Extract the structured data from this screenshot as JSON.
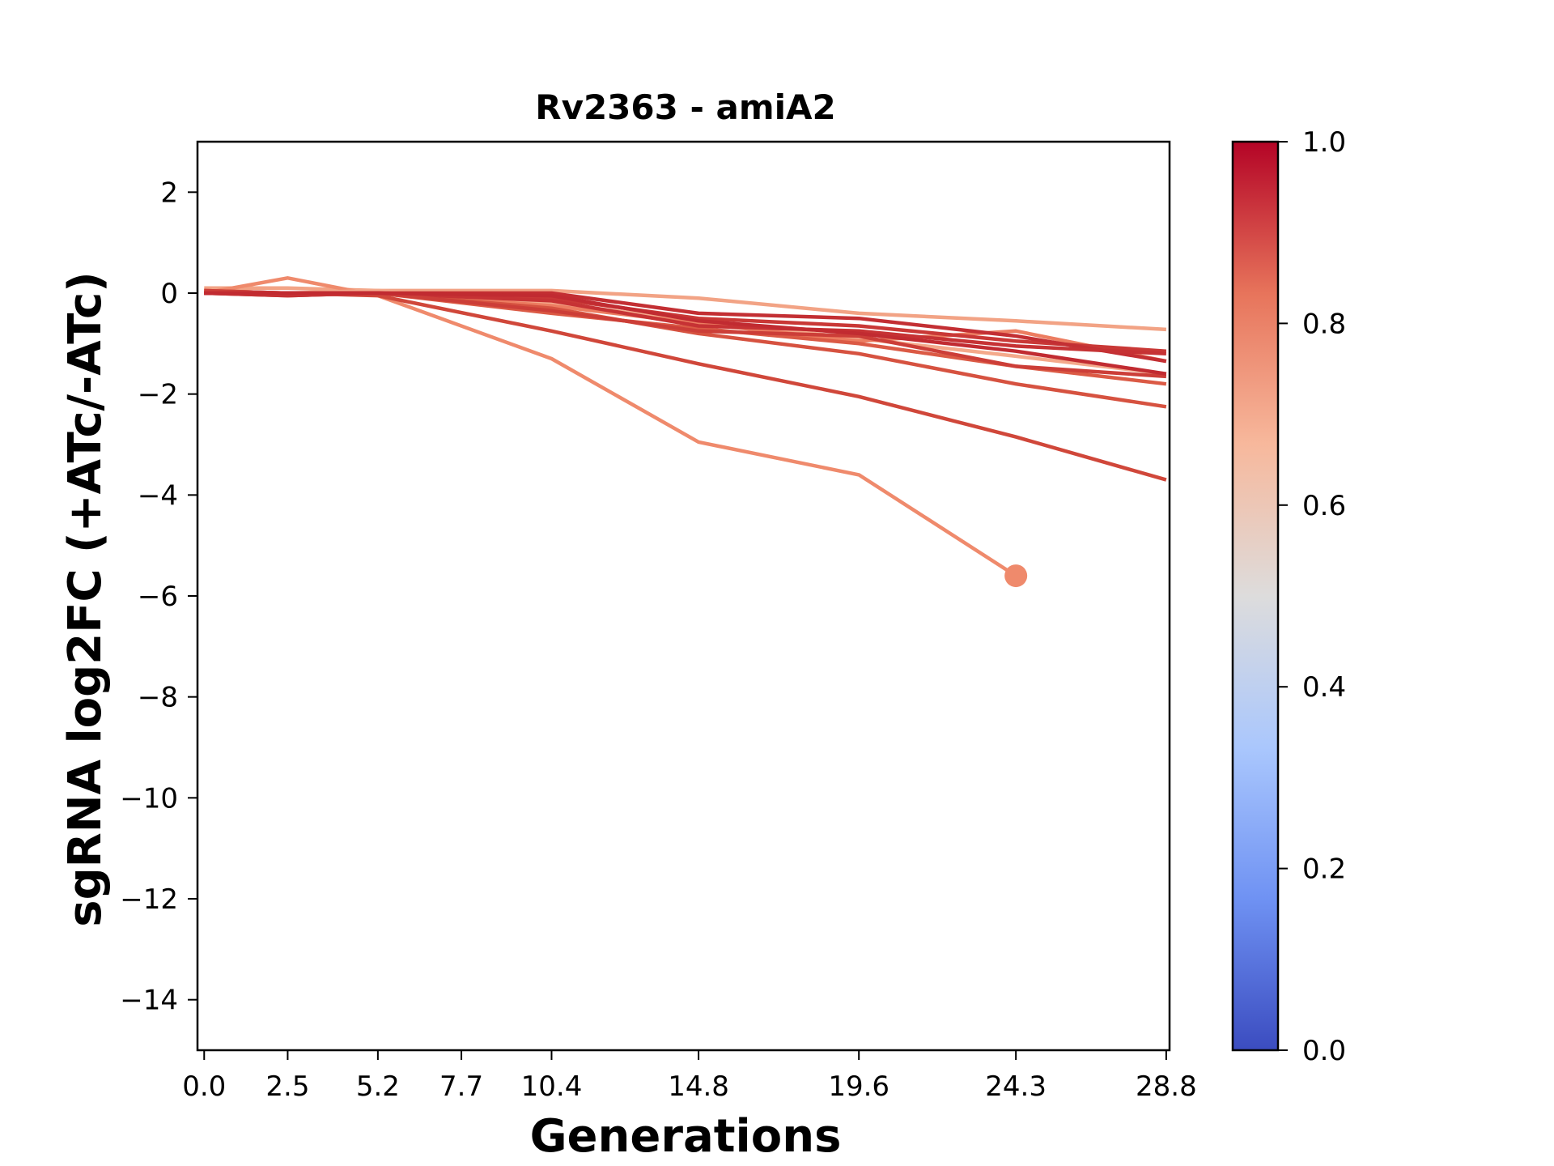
{
  "chart_data": {
    "type": "line",
    "title": "Rv2363 - amiA2",
    "xlabel": "Generations",
    "ylabel": "sgRNA log2FC (+ATc/-ATc)",
    "x_ticks": [
      "0.0",
      "2.5",
      "5.2",
      "7.7",
      "10.4",
      "14.8",
      "19.6",
      "24.3",
      "28.8"
    ],
    "x_tick_values": [
      0.0,
      2.5,
      5.2,
      7.7,
      10.4,
      14.8,
      19.6,
      24.3,
      28.8
    ],
    "y_ticks": [
      "2",
      "0",
      "−2",
      "−4",
      "−6",
      "−8",
      "−10",
      "−12",
      "−14"
    ],
    "y_tick_values": [
      2,
      0,
      -2,
      -4,
      -6,
      -8,
      -10,
      -12,
      -14
    ],
    "xlim": [
      -0.2,
      28.9
    ],
    "ylim": [
      -15,
      3
    ],
    "colormap": {
      "name": "coolwarm",
      "range": [
        0.0,
        1.0
      ],
      "tick_labels": [
        "0.0",
        "0.2",
        "0.4",
        "0.6",
        "0.8",
        "1.0"
      ],
      "tick_values": [
        0.0,
        0.2,
        0.4,
        0.6,
        0.8,
        1.0
      ],
      "stops": [
        "#3b4cc0",
        "#6f92f3",
        "#aac7fd",
        "#dddcdc",
        "#f7b89c",
        "#e7745b",
        "#b40426"
      ]
    },
    "series": [
      {
        "color_value": 0.72,
        "color": "#f2a385",
        "x": [
          0.0,
          2.5,
          5.2,
          10.4,
          14.8,
          19.6,
          24.3,
          28.8
        ],
        "y": [
          0.1,
          0.1,
          0.05,
          0.05,
          -0.1,
          -0.4,
          -0.55,
          -0.72
        ]
      },
      {
        "color_value": 0.78,
        "color": "#ef8a6c",
        "x": [
          0.0,
          2.5,
          5.2,
          10.4,
          14.8,
          19.6,
          24.3
        ],
        "y": [
          0.0,
          0.3,
          -0.05,
          -1.3,
          -2.95,
          -3.6,
          -5.6
        ],
        "end_marker": true
      },
      {
        "color_value": 0.7,
        "color": "#f4a98b",
        "x": [
          0.0,
          2.5,
          5.2,
          10.4,
          14.8,
          19.6,
          24.3,
          28.8
        ],
        "y": [
          0.05,
          0.0,
          0.05,
          -0.2,
          -0.55,
          -0.9,
          -1.25,
          -1.6
        ]
      },
      {
        "color_value": 0.8,
        "color": "#ec7d61",
        "x": [
          0.0,
          2.5,
          5.2,
          10.4,
          14.8,
          19.6,
          24.3,
          28.8
        ],
        "y": [
          0.05,
          0.0,
          0.0,
          -0.25,
          -0.6,
          -0.95,
          -0.75,
          -1.35
        ]
      },
      {
        "color_value": 0.88,
        "color": "#d65240",
        "x": [
          0.0,
          2.5,
          5.2,
          10.4,
          14.8,
          19.6,
          24.3,
          28.8
        ],
        "y": [
          0.0,
          -0.05,
          0.0,
          -0.3,
          -0.8,
          -1.2,
          -1.8,
          -2.25
        ]
      },
      {
        "color_value": 0.9,
        "color": "#d0473a",
        "x": [
          0.0,
          2.5,
          5.2,
          10.4,
          14.8,
          19.6,
          24.3,
          28.8
        ],
        "y": [
          0.0,
          0.0,
          -0.05,
          -0.75,
          -1.4,
          -2.05,
          -2.85,
          -3.7
        ]
      },
      {
        "color_value": 0.86,
        "color": "#db5a45",
        "x": [
          0.0,
          2.5,
          5.2,
          10.4,
          14.8,
          19.6,
          24.3,
          28.8
        ],
        "y": [
          0.05,
          0.0,
          0.0,
          -0.4,
          -0.7,
          -1.0,
          -1.45,
          -1.8
        ]
      },
      {
        "color_value": 0.92,
        "color": "#c93836",
        "x": [
          0.0,
          2.5,
          5.2,
          10.4,
          14.8,
          19.6,
          24.3,
          28.8
        ],
        "y": [
          0.0,
          0.0,
          0.0,
          -0.1,
          -0.5,
          -0.65,
          -0.95,
          -1.15
        ]
      },
      {
        "color_value": 0.94,
        "color": "#c32f33",
        "x": [
          0.0,
          2.5,
          5.2,
          10.4,
          14.8,
          19.6,
          24.3,
          28.8
        ],
        "y": [
          0.0,
          0.0,
          0.0,
          0.0,
          -0.4,
          -0.5,
          -0.85,
          -1.35
        ]
      },
      {
        "color_value": 0.93,
        "color": "#c63234",
        "x": [
          0.0,
          2.5,
          5.2,
          10.4,
          14.8,
          19.6,
          24.3,
          28.8
        ],
        "y": [
          0.0,
          -0.05,
          0.0,
          -0.15,
          -0.65,
          -0.75,
          -1.05,
          -1.2
        ]
      },
      {
        "color_value": 0.91,
        "color": "#cc3e38",
        "x": [
          0.0,
          2.5,
          5.2,
          10.4,
          14.8,
          19.6,
          24.3,
          28.8
        ],
        "y": [
          0.05,
          0.0,
          0.0,
          -0.35,
          -0.75,
          -0.85,
          -1.45,
          -1.65
        ]
      },
      {
        "color_value": 0.95,
        "color": "#c12b31",
        "x": [
          0.0,
          2.5,
          5.2,
          10.4,
          14.8,
          19.6,
          24.3,
          28.8
        ],
        "y": [
          0.0,
          0.0,
          0.0,
          -0.05,
          -0.55,
          -0.8,
          -1.15,
          -1.6
        ]
      }
    ]
  }
}
